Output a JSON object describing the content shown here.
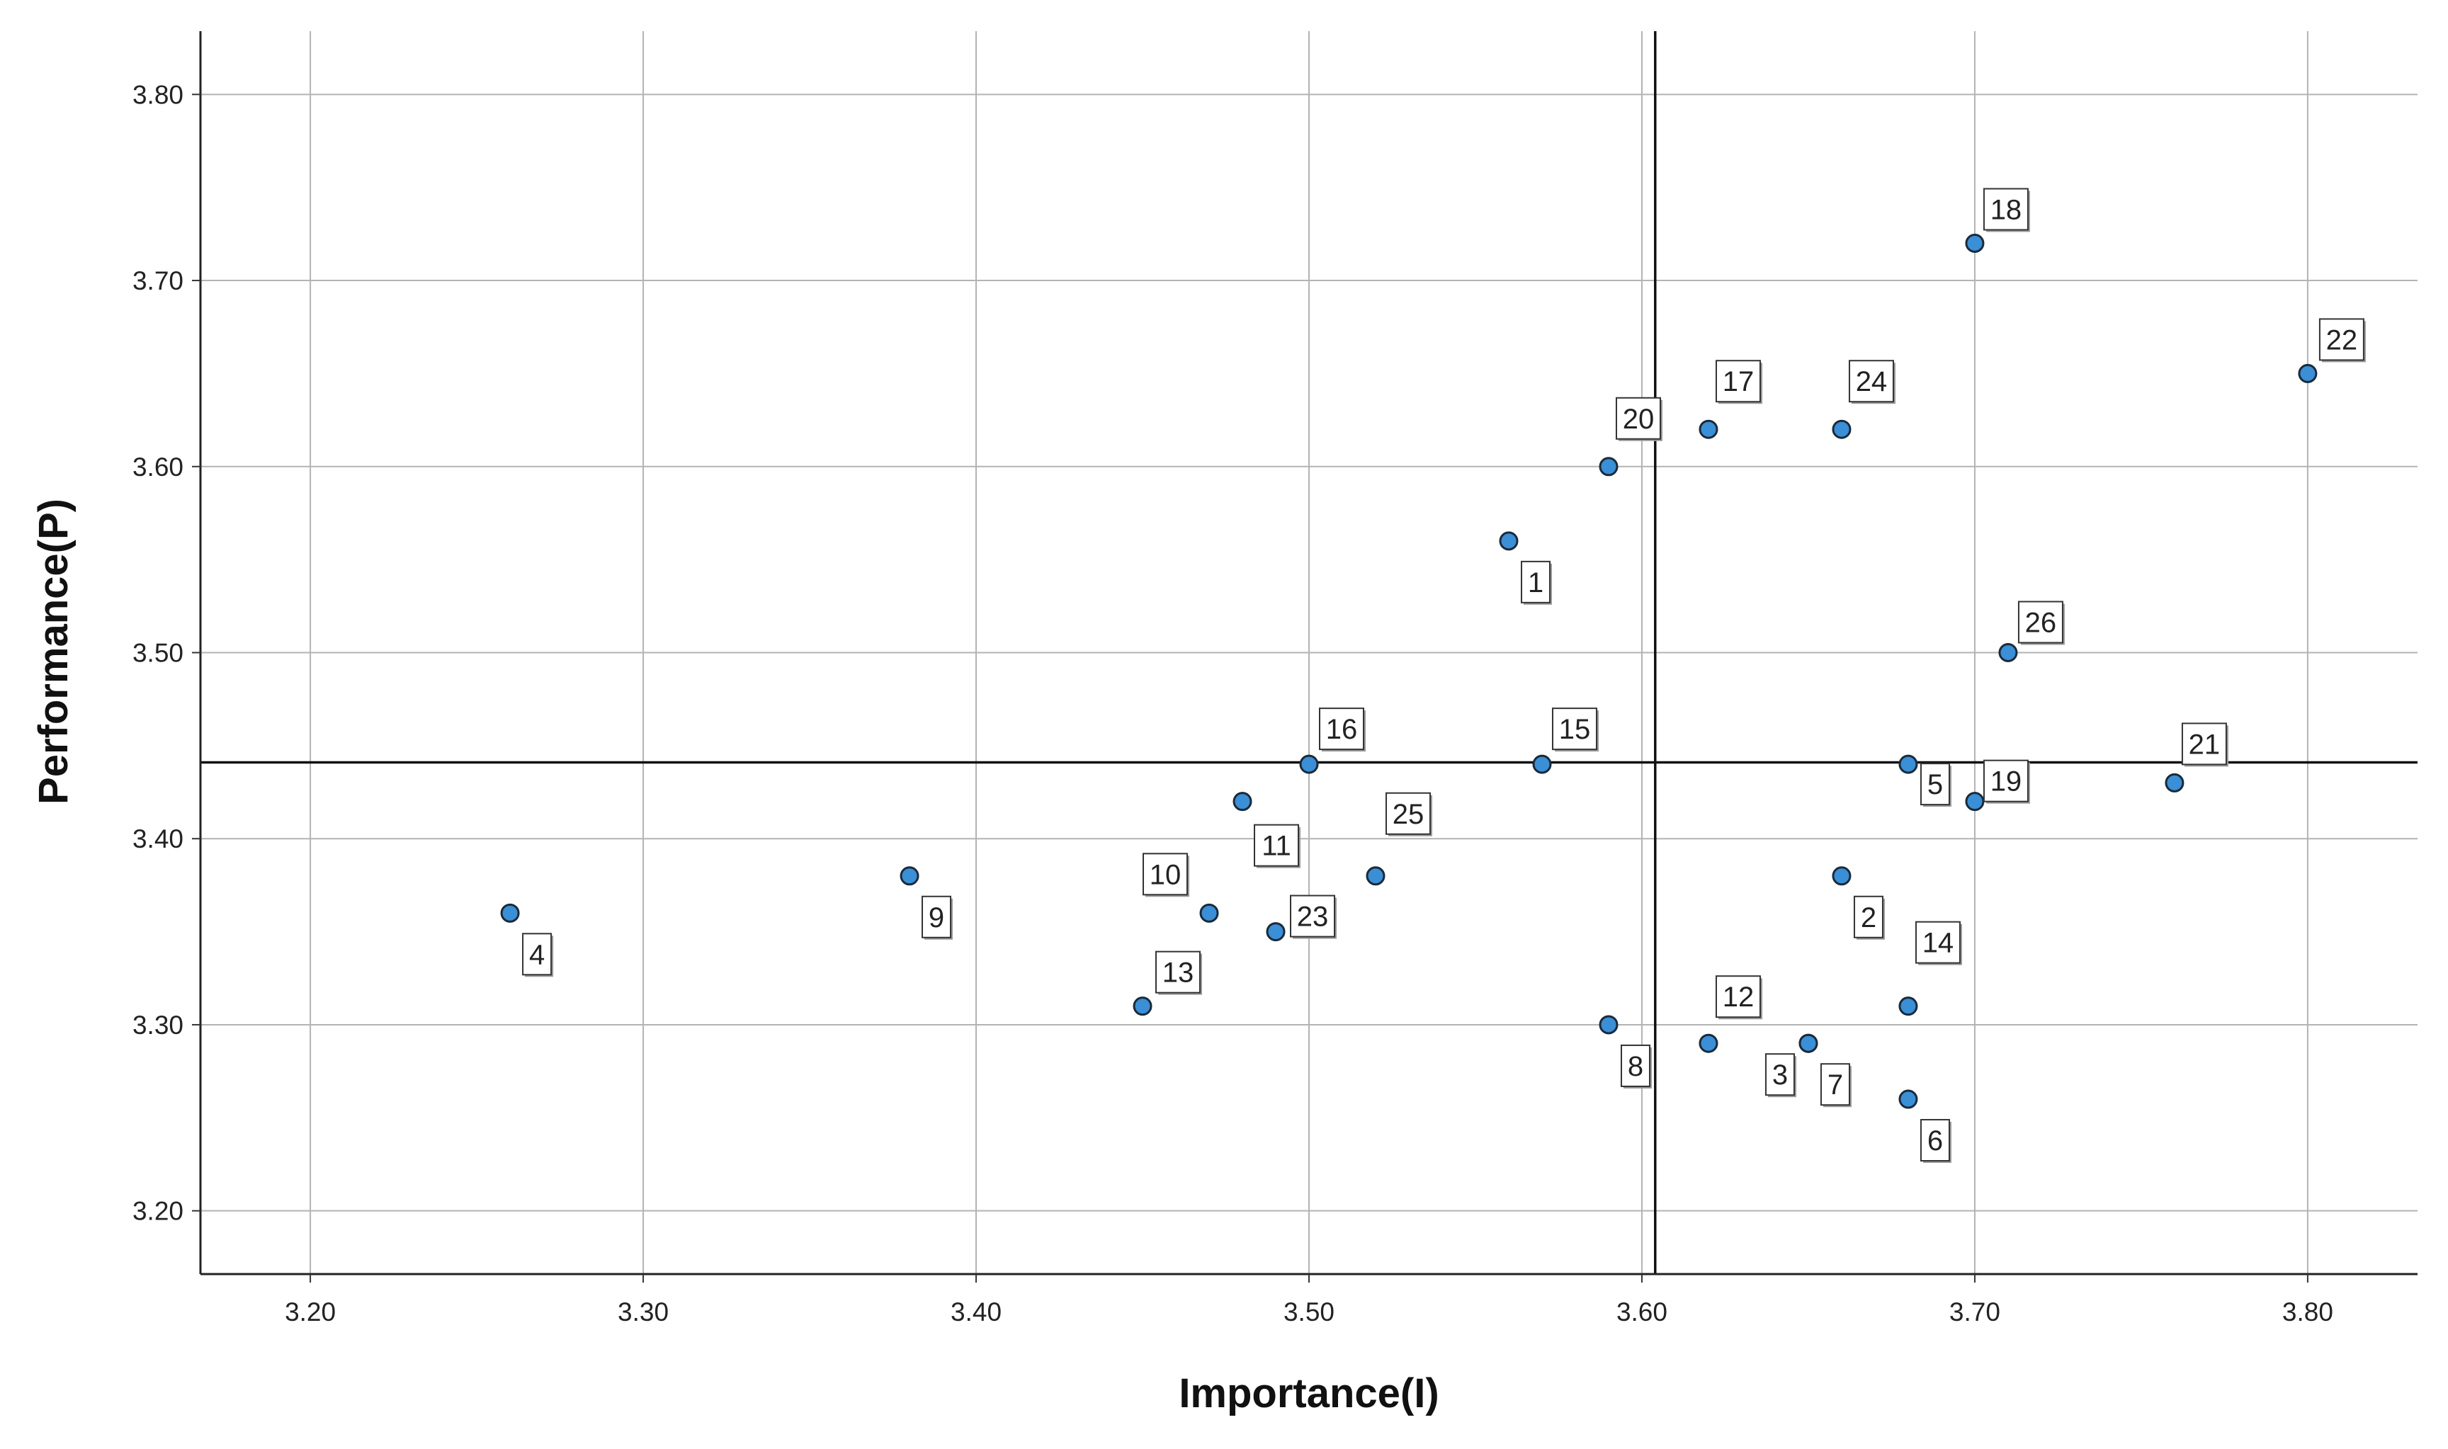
{
  "chart_data": {
    "type": "scatter",
    "title": "",
    "xlabel": "Importance(I)",
    "ylabel": "Performance(P)",
    "xlim": [
      3.167,
      3.833
    ],
    "ylim": [
      3.166,
      3.834
    ],
    "x_ticks": [
      "3.20",
      "3.30",
      "3.40",
      "3.50",
      "3.60",
      "3.70",
      "3.80"
    ],
    "y_ticks": [
      "3.20",
      "3.30",
      "3.40",
      "3.50",
      "3.60",
      "3.70",
      "3.80"
    ],
    "grid": true,
    "reference_lines": {
      "x_mean": 3.604,
      "y_mean": 3.441
    },
    "marker_color": "#3a8fd6",
    "marker_edge_color": "#1a2a3a",
    "points": [
      {
        "label": "1",
        "x": 3.56,
        "y": 3.56
      },
      {
        "label": "2",
        "x": 3.66,
        "y": 3.38
      },
      {
        "label": "3",
        "x": 3.65,
        "y": 3.29
      },
      {
        "label": "4",
        "x": 3.26,
        "y": 3.36
      },
      {
        "label": "5",
        "x": 3.68,
        "y": 3.44
      },
      {
        "label": "6",
        "x": 3.68,
        "y": 3.26
      },
      {
        "label": "7",
        "x": 3.65,
        "y": 3.29
      },
      {
        "label": "8",
        "x": 3.59,
        "y": 3.3
      },
      {
        "label": "9",
        "x": 3.38,
        "y": 3.38
      },
      {
        "label": "10",
        "x": 3.47,
        "y": 3.36
      },
      {
        "label": "11",
        "x": 3.48,
        "y": 3.42
      },
      {
        "label": "12",
        "x": 3.62,
        "y": 3.29
      },
      {
        "label": "13",
        "x": 3.45,
        "y": 3.31
      },
      {
        "label": "14",
        "x": 3.68,
        "y": 3.31
      },
      {
        "label": "15",
        "x": 3.57,
        "y": 3.44
      },
      {
        "label": "16",
        "x": 3.5,
        "y": 3.44
      },
      {
        "label": "17",
        "x": 3.62,
        "y": 3.62
      },
      {
        "label": "18",
        "x": 3.7,
        "y": 3.72
      },
      {
        "label": "19",
        "x": 3.7,
        "y": 3.42
      },
      {
        "label": "20",
        "x": 3.59,
        "y": 3.6
      },
      {
        "label": "21",
        "x": 3.76,
        "y": 3.43
      },
      {
        "label": "22",
        "x": 3.8,
        "y": 3.65
      },
      {
        "label": "23",
        "x": 3.49,
        "y": 3.35
      },
      {
        "label": "24",
        "x": 3.66,
        "y": 3.62
      },
      {
        "label": "25",
        "x": 3.52,
        "y": 3.38
      },
      {
        "label": "26",
        "x": 3.71,
        "y": 3.5
      }
    ]
  }
}
